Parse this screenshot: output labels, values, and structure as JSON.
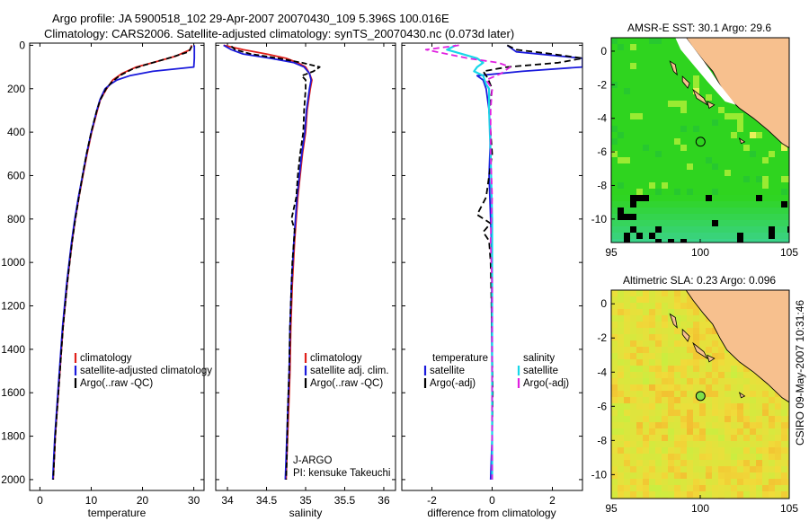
{
  "title_line1": "Argo profile: JA 5900518_102 29-Apr-2007 20070430_109 5.396S 100.016E",
  "title_line2": "Climatology: CARS2006. Satellite-adjusted climatology: synTS_20070430.nc (0.073d later)",
  "footer_stamp": "CSIRO 09-May-2007 10:31:46",
  "colors": {
    "climatology": "#e0201b",
    "satellite": "#1a1adc",
    "argo": "#000000",
    "satellite_sal_diff": "#17d7e8",
    "argo_adj_sal": "#e020e0",
    "land": "#f7c08e",
    "sst_ocean": "#2fd41f",
    "sla_ocean": "#f0dc3a"
  },
  "chart_data": [
    {
      "type": "line",
      "xlabel": "temperature",
      "xlim": [
        -2,
        32
      ],
      "ylim": [
        2050,
        -10
      ],
      "xticks": [
        0,
        10,
        20,
        30
      ],
      "yticks": [
        0,
        200,
        400,
        600,
        800,
        1000,
        1200,
        1400,
        1600,
        1800,
        2000
      ],
      "legend": [
        "climatology",
        "satellite-adjusted climatology",
        "Argo(..raw -QC)"
      ],
      "legend_placement": "lower-right",
      "series": [
        {
          "name": "climatology",
          "color": "#e0201b",
          "depth": [
            0,
            20,
            50,
            80,
            100,
            130,
            160,
            200,
            250,
            300,
            400,
            500,
            600,
            700,
            800,
            900,
            1000,
            1100,
            1200,
            1300,
            1400,
            1500,
            1600,
            1700,
            1800,
            1900,
            2000
          ],
          "value": [
            29.6,
            29.3,
            26.5,
            22,
            18.8,
            16,
            14.2,
            13,
            11.8,
            11.2,
            10.1,
            9.2,
            8.4,
            7.6,
            6.9,
            6.3,
            5.8,
            5.3,
            4.9,
            4.5,
            4.2,
            3.9,
            3.6,
            3.3,
            3,
            2.8,
            2.6
          ]
        },
        {
          "name": "satellite-adjusted climatology",
          "color": "#1a1adc",
          "depth": [
            0,
            60,
            100,
            120,
            140,
            160,
            180,
            200,
            250,
            300,
            400,
            500,
            600,
            700,
            800,
            900,
            1000,
            1100,
            1200,
            1300,
            1400,
            1500,
            1600,
            1700,
            1800,
            1900,
            2000
          ],
          "value": [
            30.1,
            30.1,
            30,
            22,
            17.5,
            15,
            13.7,
            12.7,
            11.7,
            11.1,
            10,
            9.1,
            8.3,
            7.5,
            6.8,
            6.2,
            5.7,
            5.2,
            4.8,
            4.4,
            4.1,
            3.8,
            3.5,
            3.2,
            2.9,
            2.7,
            2.5
          ]
        },
        {
          "name": "Argo(..raw -QC)",
          "color": "#000000",
          "depth": [
            5,
            30,
            60,
            90,
            110,
            140,
            170,
            200,
            250,
            300,
            400,
            500,
            600,
            700,
            800,
            900,
            1000,
            1100,
            1200,
            1300,
            1400,
            1500,
            1600,
            1700,
            1800,
            1900,
            2000
          ],
          "value": [
            29.6,
            29,
            25,
            20.5,
            18,
            15.5,
            14,
            12.9,
            11.8,
            11.1,
            10,
            9.1,
            8.3,
            7.6,
            6.9,
            6.3,
            5.8,
            5.3,
            4.9,
            4.5,
            4.2,
            3.9,
            3.6,
            3.3,
            3,
            2.8,
            2.6
          ]
        }
      ]
    },
    {
      "type": "line",
      "xlabel": "salinity",
      "xlim": [
        33.85,
        36.15
      ],
      "ylim": [
        2050,
        -10
      ],
      "xticks": [
        34,
        34.5,
        35,
        35.5,
        36
      ],
      "legend": [
        "climatology",
        "satellite adj. clim.",
        "Argo(..raw -QC)"
      ],
      "legend_placement": "lower-right",
      "annotations": [
        "J-ARGO",
        "PI: kensuke Takeuchi"
      ],
      "series": [
        {
          "name": "climatology",
          "color": "#e0201b",
          "depth": [
            0,
            20,
            40,
            60,
            80,
            100,
            130,
            160,
            200,
            300,
            400,
            500,
            700,
            900,
            1100,
            1300,
            1500,
            1700,
            1900,
            2000
          ],
          "value": [
            33.95,
            34.2,
            34.5,
            34.75,
            34.9,
            35.0,
            35.05,
            35.08,
            35.06,
            35.02,
            35.0,
            34.96,
            34.9,
            34.86,
            34.83,
            34.81,
            34.8,
            34.78,
            34.76,
            34.75
          ]
        },
        {
          "name": "satellite adj. clim.",
          "color": "#1a1adc",
          "depth": [
            0,
            20,
            40,
            60,
            80,
            100,
            130,
            160,
            200,
            300,
            400,
            500,
            700,
            900,
            1100,
            1300,
            1500,
            1700,
            1900,
            2000
          ],
          "value": [
            33.95,
            34.05,
            34.2,
            34.55,
            34.85,
            34.98,
            35.05,
            35.07,
            35.05,
            35.01,
            34.99,
            34.95,
            34.89,
            34.85,
            34.82,
            34.8,
            34.79,
            34.77,
            34.75,
            34.74
          ]
        },
        {
          "name": "Argo(..raw -QC)",
          "color": "#000000",
          "depth": [
            5,
            20,
            40,
            60,
            80,
            100,
            120,
            140,
            160,
            200,
            300,
            400,
            500,
            600,
            700,
            800,
            850,
            900,
            1000,
            1100,
            1300,
            1500,
            1700,
            1900,
            2000
          ],
          "value": [
            34.05,
            34.1,
            34.3,
            34.65,
            34.95,
            35.18,
            35.1,
            34.95,
            35.0,
            35.0,
            34.98,
            34.97,
            34.93,
            34.9,
            34.88,
            34.82,
            34.86,
            34.85,
            34.83,
            34.82,
            34.8,
            34.79,
            34.77,
            34.76,
            34.75
          ]
        }
      ]
    },
    {
      "type": "line",
      "xlabel": "difference from climatology",
      "xlim": [
        -3,
        3
      ],
      "ylim": [
        2050,
        -10
      ],
      "xticks": [
        -2,
        0,
        2
      ],
      "legend": [
        "temperature",
        "satellite",
        "Argo(-adj)",
        "salinity",
        "satellite",
        "Argo(-adj)"
      ],
      "legend_placement": "lower-center",
      "series": [
        {
          "name": "temperature satellite",
          "color": "#1a1adc",
          "depth": [
            0,
            30,
            60,
            80,
            100,
            120,
            140,
            160,
            200,
            300,
            400,
            600,
            800,
            1000,
            1200,
            1400,
            1600,
            1800,
            2000
          ],
          "value": [
            0.5,
            0.8,
            3,
            3,
            3,
            1,
            -0.5,
            -0.3,
            -0.2,
            -0.1,
            -0.05,
            -0.1,
            -0.05,
            0,
            -0.02,
            -0.01,
            0,
            0,
            -0.05
          ]
        },
        {
          "name": "temperature Argo(-adj)",
          "color": "#000000",
          "depth": [
            0,
            20,
            40,
            60,
            80,
            100,
            120,
            150,
            200,
            300,
            500,
            700,
            780,
            820,
            860,
            900,
            1000,
            1200,
            1400,
            1600,
            1800,
            2000
          ],
          "value": [
            0.5,
            0.8,
            2,
            3,
            2.2,
            0.5,
            -0.3,
            -0.15,
            0,
            -0.1,
            0,
            -0.2,
            -0.5,
            -0.05,
            -0.3,
            -0.1,
            -0.05,
            -0.02,
            0,
            0.02,
            0,
            0
          ]
        },
        {
          "name": "salinity satellite",
          "color": "#17d7e8",
          "depth": [
            0,
            20,
            40,
            60,
            80,
            100,
            120,
            140,
            180,
            200,
            300,
            500,
            800,
            1000,
            1500,
            2000
          ],
          "value": [
            -1.2,
            -1.5,
            -1.0,
            -0.5,
            -0.3,
            -0.5,
            -0.6,
            -0.3,
            -0.2,
            -0.1,
            -0.1,
            -0.05,
            0,
            0,
            0,
            0
          ]
        },
        {
          "name": "salinity Argo(-adj)",
          "color": "#e020e0",
          "depth": [
            0,
            20,
            40,
            60,
            80,
            100,
            130,
            160,
            200,
            300,
            500,
            700,
            900,
            1100,
            1300,
            1500,
            1700,
            2000
          ],
          "value": [
            -1.1,
            -2.2,
            -1.5,
            -0.8,
            0.2,
            0.6,
            0.3,
            -0.2,
            0,
            -0.05,
            -0.05,
            0,
            -0.05,
            0,
            0,
            0,
            0,
            0
          ]
        }
      ]
    },
    {
      "type": "heatmap",
      "title": "AMSR-E SST: 30.1 Argo: 29.6",
      "xlim": [
        95,
        105
      ],
      "ylim": [
        -11.4,
        0.8
      ],
      "xticks": [
        95,
        100,
        105
      ],
      "yticks": [
        0,
        -2,
        -4,
        -6,
        -8,
        -10
      ],
      "marker": {
        "lon": 100.016,
        "lat": -5.396
      }
    },
    {
      "type": "heatmap",
      "title": "Altimetric SLA: 0.23 Argo: 0.096",
      "xlim": [
        95,
        105
      ],
      "ylim": [
        -11.4,
        0.8
      ],
      "xticks": [
        95,
        100,
        105
      ],
      "yticks": [
        0,
        -2,
        -4,
        -6,
        -8,
        -10
      ],
      "marker": {
        "lon": 100.016,
        "lat": -5.396
      }
    }
  ]
}
